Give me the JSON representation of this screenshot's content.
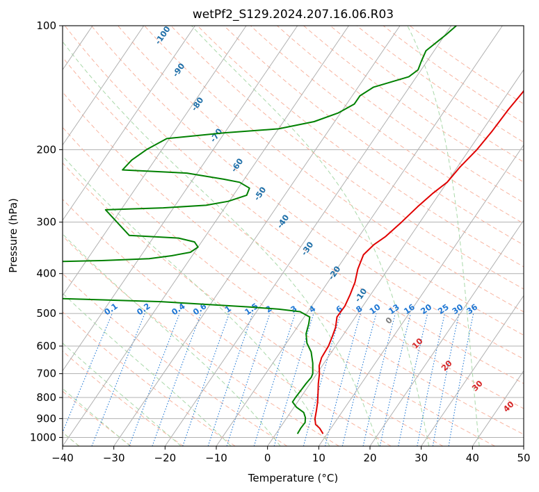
{
  "chart_data": {
    "type": "skew-t",
    "title": "wetPf2_S129.2024.207.16.06.R03",
    "xlabel": "Temperature (°C)",
    "ylabel": "Pressure (hPa)",
    "xlim": [
      -40,
      50
    ],
    "ylim": [
      1050,
      100
    ],
    "y_scale": "log",
    "x_ticks": [
      -40,
      -30,
      -20,
      -10,
      0,
      10,
      20,
      30,
      40,
      50
    ],
    "x_tick_labels": [
      "−40",
      "−30",
      "−20",
      "−10",
      "0",
      "10",
      "20",
      "30",
      "40",
      "50"
    ],
    "y_ticks": [
      100,
      200,
      300,
      400,
      500,
      600,
      700,
      800,
      900,
      1000
    ],
    "y_tick_labels": [
      "100",
      "200",
      "300",
      "400",
      "500",
      "600",
      "700",
      "800",
      "900",
      "1000"
    ],
    "grid": true,
    "colors": {
      "temperature": "#e00000",
      "dewpoint": "#008000",
      "isotherm": "#b0b0b0",
      "dry_adiabat": "#f8b4a0",
      "moist_adiabat": "#a8d8a8",
      "mixing_ratio": "#1f77d4",
      "wetbulb_label": "#1f6fa8",
      "theta_label": "#d62728"
    },
    "series": [
      {
        "key": "temperature",
        "points": [
          [
            980,
            9.2
          ],
          [
            950,
            7.8
          ],
          [
            930,
            6.5
          ],
          [
            900,
            5.6
          ],
          [
            860,
            4.8
          ],
          [
            820,
            3.9
          ],
          [
            780,
            2.8
          ],
          [
            740,
            1.6
          ],
          [
            700,
            0.5
          ],
          [
            670,
            -0.6
          ],
          [
            640,
            -1.2
          ],
          [
            600,
            -1.4
          ],
          [
            570,
            -1.9
          ],
          [
            540,
            -2.5
          ],
          [
            510,
            -3.6
          ],
          [
            480,
            -3.5
          ],
          [
            450,
            -4.0
          ],
          [
            420,
            -4.7
          ],
          [
            390,
            -5.9
          ],
          [
            360,
            -6.7
          ],
          [
            340,
            -6.0
          ],
          [
            325,
            -4.8
          ],
          [
            300,
            -3.6
          ],
          [
            275,
            -2.5
          ],
          [
            255,
            -1.3
          ],
          [
            240,
            0.0
          ],
          [
            220,
            0.5
          ],
          [
            200,
            1.5
          ],
          [
            180,
            2.0
          ],
          [
            160,
            2.3
          ],
          [
            145,
            2.8
          ],
          [
            125,
            3.0
          ],
          [
            110,
            3.0
          ],
          [
            100,
            3.0
          ]
        ]
      },
      {
        "key": "dewpoint",
        "points": [
          [
            980,
            4.2
          ],
          [
            950,
            4.1
          ],
          [
            920,
            4.2
          ],
          [
            895,
            3.6
          ],
          [
            870,
            2.6
          ],
          [
            845,
            0.5
          ],
          [
            820,
            -1.0
          ],
          [
            800,
            -1.0
          ],
          [
            770,
            -0.9
          ],
          [
            740,
            -0.8
          ],
          [
            715,
            -0.6
          ],
          [
            700,
            -0.8
          ],
          [
            660,
            -2.2
          ],
          [
            620,
            -4.0
          ],
          [
            590,
            -6.0
          ],
          [
            560,
            -7.4
          ],
          [
            530,
            -8.2
          ],
          [
            510,
            -8.9
          ],
          [
            495,
            -11.5
          ],
          [
            488,
            -16.0
          ],
          [
            482,
            -22.0
          ],
          [
            476,
            -30.0
          ],
          [
            468,
            -40.0
          ],
          [
            460,
            -60.0
          ],
          [
            375,
            -70.0
          ],
          [
            372,
            -57.0
          ],
          [
            368,
            -48.0
          ],
          [
            362,
            -44.0
          ],
          [
            355,
            -40.8
          ],
          [
            345,
            -40.0
          ],
          [
            335,
            -41.4
          ],
          [
            328,
            -45.0
          ],
          [
            323,
            -55.0
          ],
          [
            280,
            -63.0
          ],
          [
            277,
            -52.0
          ],
          [
            273,
            -44.0
          ],
          [
            267,
            -40.2
          ],
          [
            258,
            -37.4
          ],
          [
            248,
            -37.8
          ],
          [
            240,
            -40.5
          ],
          [
            236,
            -44.0
          ],
          [
            228,
            -52.0
          ],
          [
            224,
            -65.0
          ],
          [
            212,
            -64.5
          ],
          [
            200,
            -63.0
          ],
          [
            188,
            -60.5
          ],
          [
            182,
            -50.0
          ],
          [
            178,
            -40.0
          ],
          [
            171,
            -34.0
          ],
          [
            163,
            -30.5
          ],
          [
            155,
            -28.5
          ],
          [
            148,
            -28.5
          ],
          [
            141,
            -27.0
          ],
          [
            133,
            -21.5
          ],
          [
            128,
            -20.6
          ],
          [
            122,
            -21.1
          ],
          [
            115,
            -21.6
          ],
          [
            105,
            -19.8
          ],
          [
            100,
            -19.0
          ]
        ]
      }
    ],
    "isotherms": [
      -140,
      -130,
      -120,
      -110,
      -100,
      -90,
      -80,
      -70,
      -60,
      -50,
      -40,
      -30,
      -20,
      -10,
      0,
      10,
      20,
      30,
      40,
      50
    ],
    "dry_adiabats": [
      -40,
      -30,
      -20,
      -10,
      0,
      10,
      20,
      30,
      40,
      50,
      60,
      70,
      80,
      90,
      100,
      110,
      120,
      130,
      140,
      150,
      160,
      170,
      180,
      190,
      200
    ],
    "moist_adiabats_start_at_1000": [
      -40,
      -30,
      -20,
      -10,
      0,
      10,
      20,
      30,
      40
    ],
    "mixing_ratio_labels": [
      "0.1",
      "0.2",
      "0.4",
      "0.6",
      "1",
      "1.5",
      "2",
      "3",
      "4",
      "6",
      "8",
      "10",
      "13",
      "16",
      "20",
      "25",
      "30",
      "36"
    ],
    "wetbulb_isotherm_labels": [
      "-100",
      "-90",
      "-80",
      "-70",
      "-60",
      "-50",
      "-40",
      "-30",
      "-20",
      "-10"
    ],
    "theta_labels": [
      "0",
      "10",
      "20",
      "30",
      "40"
    ]
  }
}
